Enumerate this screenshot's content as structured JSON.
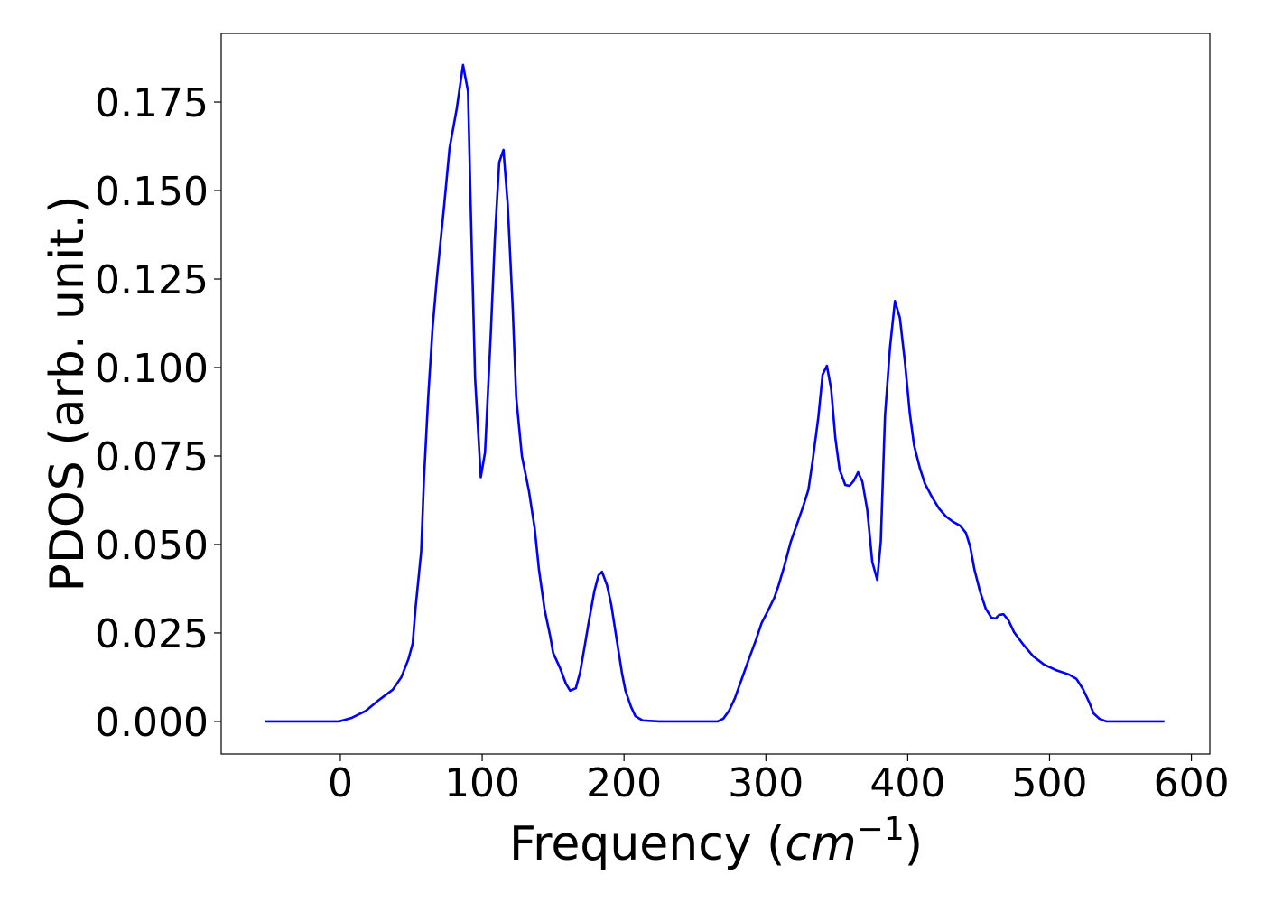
{
  "chart_data": {
    "type": "line",
    "ylabel": "PDOS (arb. unit.)",
    "xlabel": {
      "text": "Frequency (",
      "italic": "cm",
      "sup": "−1",
      "end": ")"
    },
    "xlim": [
      -84,
      613
    ],
    "ylim": [
      -0.0092,
      0.1944
    ],
    "xticks": [
      0,
      100,
      200,
      300,
      400,
      500,
      600
    ],
    "yticks": [
      {
        "value": 0,
        "label": "0.000"
      },
      0.025,
      {
        "value": 0.05,
        "label": "0.050"
      },
      0.075,
      {
        "value": 0.1,
        "label": "0.100"
      },
      0.125,
      {
        "value": 0.15,
        "label": "0.150"
      },
      0.175
    ],
    "grid": false,
    "series": [
      {
        "color": "#0000ff",
        "x": [
          -53,
          -1,
          8,
          18,
          27,
          37,
          43,
          48,
          51,
          53,
          57,
          59,
          62,
          65,
          68,
          73,
          77,
          82,
          86.5,
          90,
          92,
          95,
          99,
          102,
          106,
          109,
          112,
          115,
          118,
          121.5,
          124,
          128,
          133,
          137,
          140,
          144,
          148,
          150,
          155,
          159,
          162,
          166,
          169,
          172,
          175,
          179,
          182,
          184.5,
          188,
          191,
          195,
          198.5,
          201,
          205,
          208,
          213,
          225,
          266,
          270,
          274,
          278,
          283,
          288,
          293,
          297,
          301,
          306,
          309,
          313,
          317.5,
          322,
          326,
          330,
          333,
          337,
          340,
          343,
          346,
          349,
          352,
          356,
          359,
          362,
          365,
          368,
          371.5,
          375,
          378.5,
          381,
          384,
          387.5,
          391,
          394.5,
          398,
          401.5,
          404.5,
          408.5,
          412,
          417,
          422,
          427,
          432,
          437,
          441,
          444,
          447,
          451,
          455,
          459,
          462,
          464.5,
          467.5,
          471,
          475,
          481.5,
          488.5,
          496,
          504.5,
          513.5,
          519,
          523.5,
          528,
          531,
          535,
          540,
          581
        ],
        "values": [
          0,
          0,
          0.001,
          0.003,
          0.006,
          0.009,
          0.0125,
          0.0176,
          0.022,
          0.032,
          0.048,
          0.069,
          0.092,
          0.111,
          0.125,
          0.145,
          0.162,
          0.173,
          0.1855,
          0.178,
          0.144,
          0.097,
          0.069,
          0.076,
          0.109,
          0.137,
          0.158,
          0.1615,
          0.146,
          0.117,
          0.0915,
          0.075,
          0.065,
          0.0546,
          0.043,
          0.0316,
          0.024,
          0.0194,
          0.015,
          0.0107,
          0.0087,
          0.0094,
          0.0138,
          0.0207,
          0.0278,
          0.0367,
          0.0413,
          0.0423,
          0.0385,
          0.033,
          0.0227,
          0.0138,
          0.0087,
          0.0041,
          0.0015,
          0.0003,
          0,
          0,
          0.0008,
          0.003,
          0.0064,
          0.012,
          0.0176,
          0.023,
          0.0278,
          0.0309,
          0.035,
          0.0385,
          0.0439,
          0.0507,
          0.0558,
          0.0604,
          0.0655,
          0.0737,
          0.086,
          0.098,
          0.1005,
          0.094,
          0.08,
          0.0711,
          0.0668,
          0.0666,
          0.068,
          0.0704,
          0.0678,
          0.0597,
          0.0451,
          0.04,
          0.0507,
          0.0864,
          0.1056,
          0.1188,
          0.114,
          0.1017,
          0.087,
          0.078,
          0.0717,
          0.0673,
          0.0635,
          0.0602,
          0.0579,
          0.0564,
          0.0553,
          0.0533,
          0.0495,
          0.043,
          0.0367,
          0.0319,
          0.0293,
          0.0291,
          0.0301,
          0.0303,
          0.0286,
          0.0252,
          0.0217,
          0.0184,
          0.0161,
          0.0145,
          0.0133,
          0.012,
          0.0092,
          0.0054,
          0.0023,
          0.0008,
          0,
          0
        ]
      }
    ]
  }
}
